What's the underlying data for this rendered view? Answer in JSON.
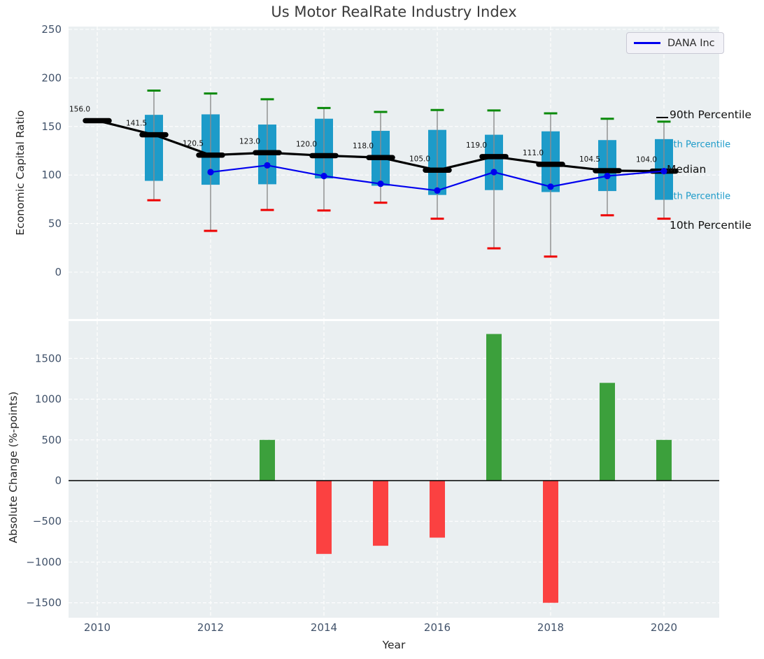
{
  "legend": {
    "label": "DANA Inc"
  },
  "colors": {
    "plot_bg": "#eaeff1",
    "grid": "#ffffff",
    "box_fill": "#1d9bc9",
    "whisker": "#8c8c8c",
    "cap_high": "#0a8a0a",
    "cap_low": "#ee0000",
    "median_line": "#000000",
    "dana_line": "#0000ee",
    "bar_positive": "#3ca03c",
    "bar_negative": "#fb4141",
    "tick_label": "#42536b",
    "annotation": "#111111",
    "cyan_label": "#1d9bc9",
    "title": "#3a3a3a"
  },
  "chart_data": [
    {
      "type": "box",
      "title": "Us Motor RealRate Industry Index",
      "ylabel": "Economic Capital Ratio",
      "xlabel": "",
      "ylim": [
        -50,
        252
      ],
      "yticks": [
        0,
        50,
        100,
        150,
        200,
        250
      ],
      "ytick_labels": [
        "0",
        "50",
        "100",
        "150",
        "200",
        "250"
      ],
      "xticks": [
        2010,
        2012,
        2014,
        2016,
        2018,
        2020
      ],
      "grid": true,
      "legend_position": "upper right",
      "years": [
        2010,
        2011,
        2012,
        2013,
        2014,
        2015,
        2016,
        2017,
        2018,
        2019,
        2020
      ],
      "median": [
        156.0,
        141.5,
        120.5,
        123.0,
        120.0,
        118.0,
        105.0,
        119.0,
        111.0,
        104.5,
        104.0
      ],
      "median_labels": [
        "156.0",
        "141.5",
        "120.5",
        "123.0",
        "120.0",
        "118.0",
        "105.0",
        "119.0",
        "111.0",
        "104.5",
        "104.0"
      ],
      "q75": [
        null,
        162,
        162.5,
        152,
        158,
        145.5,
        146.5,
        141.5,
        145,
        136,
        137
      ],
      "q25": [
        null,
        94,
        90,
        90.5,
        96.5,
        89,
        79.5,
        84.5,
        82.5,
        83.5,
        74.5
      ],
      "p90": [
        null,
        187,
        184,
        178,
        169,
        165,
        167,
        166.5,
        163.5,
        158,
        155
      ],
      "p10": [
        null,
        74,
        42.5,
        64,
        63.5,
        71.5,
        55,
        24.5,
        16,
        58.5,
        55
      ],
      "series": [
        {
          "name": "DANA Inc",
          "years": [
            2012,
            2013,
            2014,
            2015,
            2016,
            2017,
            2018,
            2019,
            2020
          ],
          "values": [
            103,
            110,
            99,
            91,
            84,
            103,
            88,
            99,
            104
          ]
        }
      ],
      "right_labels": [
        "90th Percentile",
        "75th Percentile",
        "Median",
        "25th Percentile",
        "10th Percentile"
      ]
    },
    {
      "type": "bar",
      "ylabel": "Absolute Change (%-points)",
      "xlabel": "Year",
      "ylim": [
        -1700,
        1950
      ],
      "yticks": [
        -1500,
        -1000,
        -500,
        0,
        500,
        1000,
        1500
      ],
      "ytick_labels": [
        "−1500",
        "−1000",
        "−500",
        "0",
        "500",
        "1000",
        "1500"
      ],
      "xticks": [
        2010,
        2012,
        2014,
        2016,
        2018,
        2020
      ],
      "xtick_labels": [
        "2010",
        "2012",
        "2014",
        "2016",
        "2018",
        "2020"
      ],
      "grid": true,
      "years": [
        2011,
        2012,
        2013,
        2014,
        2015,
        2016,
        2017,
        2018,
        2019,
        2020
      ],
      "values": [
        0,
        0,
        500,
        -900,
        -800,
        -700,
        1800,
        -1500,
        1200,
        500
      ],
      "zero_line": true
    }
  ]
}
